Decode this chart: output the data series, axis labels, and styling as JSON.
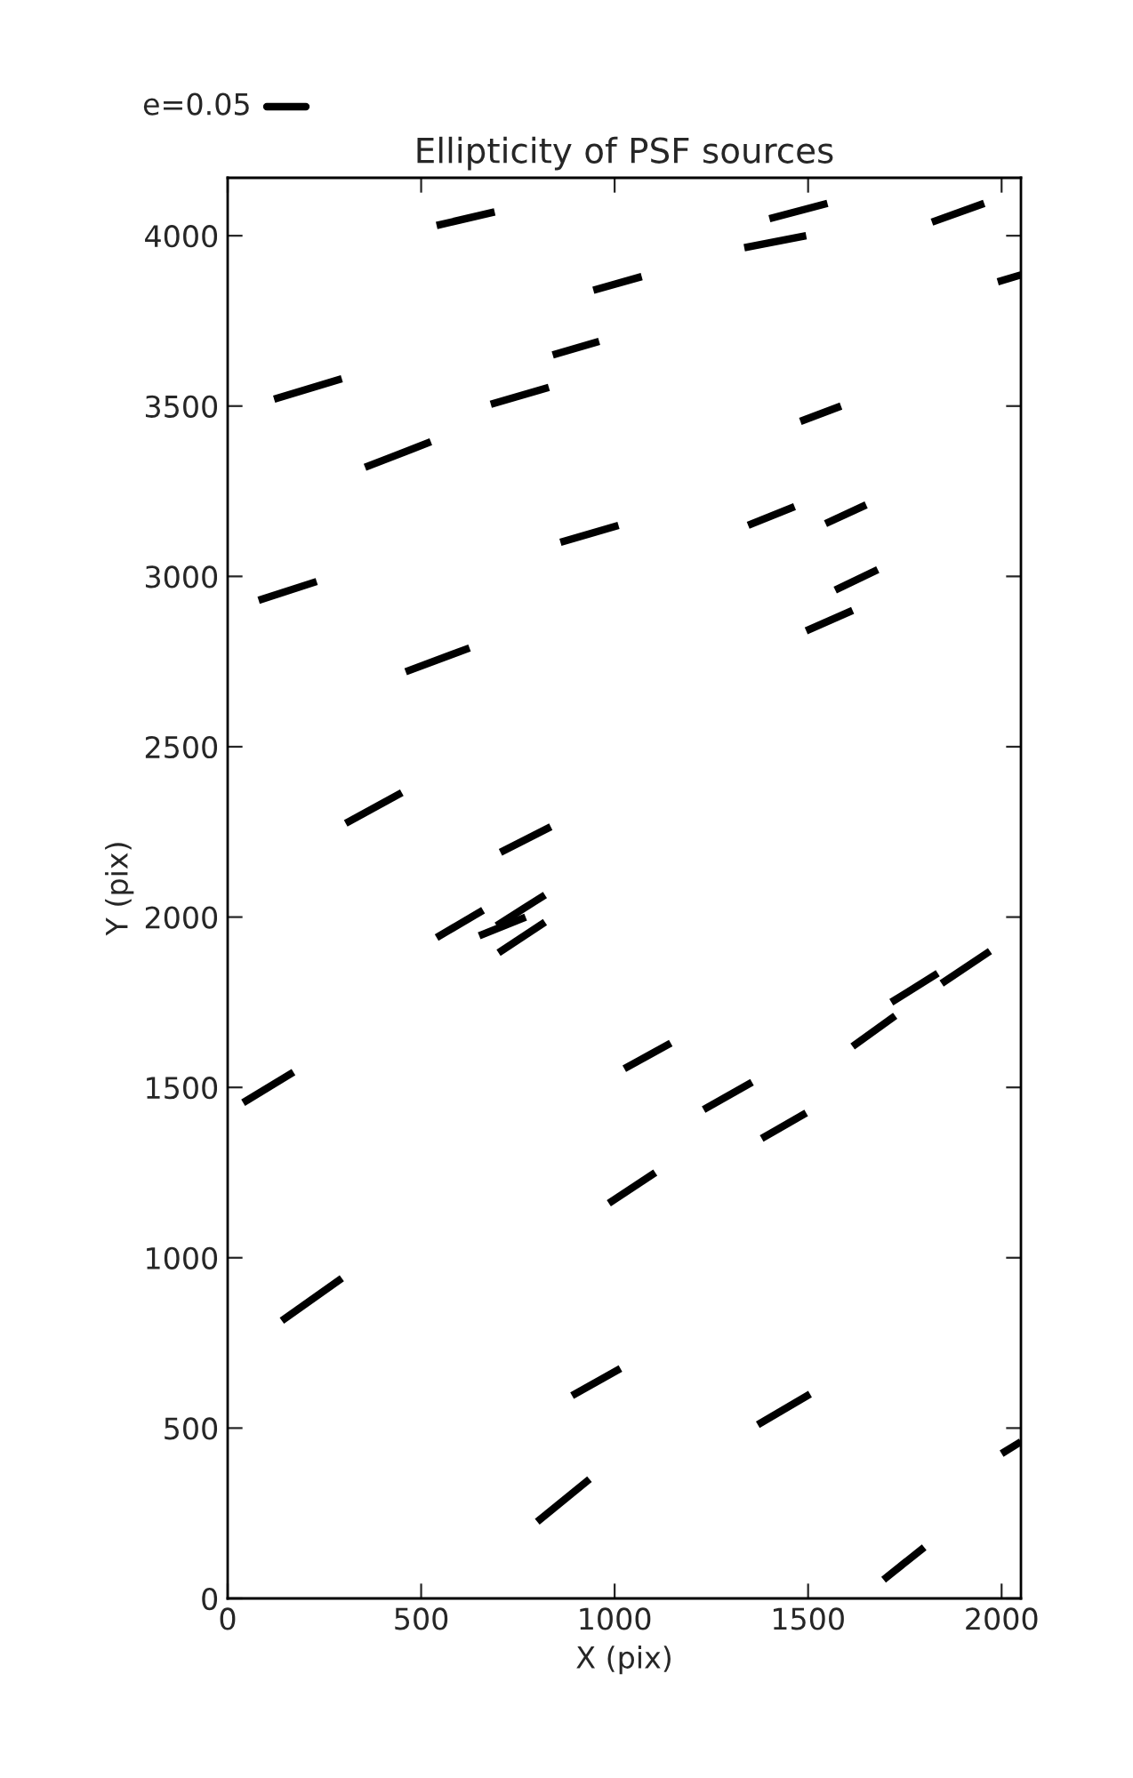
{
  "chart_data": {
    "type": "line",
    "title": "Ellipticity of PSF sources",
    "xlabel": "X (pix)",
    "ylabel": "Y (pix)",
    "annotations": [
      "e=0.05"
    ],
    "xlim": [
      0,
      2050
    ],
    "xticks": [
      0,
      500,
      1000,
      1500,
      2000
    ],
    "ylim": [
      0,
      4170
    ],
    "yticks": [
      0,
      500,
      1000,
      1500,
      2000,
      2500,
      3000,
      3500,
      4000
    ],
    "grid": false,
    "marker": "none",
    "line_style": "solid",
    "series": [
      {
        "color": "#000000",
        "x": [
          540,
          690
        ],
        "values": [
          4030,
          4070
        ]
      },
      {
        "color": "#000000",
        "x": [
          1400,
          1550
        ],
        "values": [
          4050,
          4095
        ]
      },
      {
        "color": "#000000",
        "x": [
          1820,
          1955
        ],
        "values": [
          4040,
          4095
        ]
      },
      {
        "color": "#000000",
        "x": [
          1335,
          1495
        ],
        "values": [
          3965,
          4000
        ]
      },
      {
        "color": "#000000",
        "x": [
          1990,
          2050
        ],
        "values": [
          3865,
          3885
        ]
      },
      {
        "color": "#000000",
        "x": [
          945,
          1070
        ],
        "values": [
          3840,
          3880
        ]
      },
      {
        "color": "#000000",
        "x": [
          120,
          295
        ],
        "values": [
          3520,
          3580
        ]
      },
      {
        "color": "#000000",
        "x": [
          840,
          960
        ],
        "values": [
          3650,
          3690
        ]
      },
      {
        "color": "#000000",
        "x": [
          680,
          830
        ],
        "values": [
          3505,
          3555
        ]
      },
      {
        "color": "#000000",
        "x": [
          355,
          525
        ],
        "values": [
          3320,
          3395
        ]
      },
      {
        "color": "#000000",
        "x": [
          1480,
          1585
        ],
        "values": [
          3455,
          3500
        ]
      },
      {
        "color": "#000000",
        "x": [
          80,
          230
        ],
        "values": [
          2930,
          2985
        ]
      },
      {
        "color": "#000000",
        "x": [
          860,
          1010
        ],
        "values": [
          3100,
          3150
        ]
      },
      {
        "color": "#000000",
        "x": [
          1345,
          1465
        ],
        "values": [
          3150,
          3205
        ]
      },
      {
        "color": "#000000",
        "x": [
          1545,
          1650
        ],
        "values": [
          3155,
          3210
        ]
      },
      {
        "color": "#000000",
        "x": [
          1570,
          1680
        ],
        "values": [
          2960,
          3020
        ]
      },
      {
        "color": "#000000",
        "x": [
          1495,
          1615
        ],
        "values": [
          2840,
          2900
        ]
      },
      {
        "color": "#000000",
        "x": [
          460,
          625
        ],
        "values": [
          2720,
          2790
        ]
      },
      {
        "color": "#000000",
        "x": [
          305,
          450
        ],
        "values": [
          2275,
          2365
        ]
      },
      {
        "color": "#000000",
        "x": [
          705,
          835
        ],
        "values": [
          2190,
          2265
        ]
      },
      {
        "color": "#000000",
        "x": [
          540,
          660
        ],
        "values": [
          1940,
          2020
        ]
      },
      {
        "color": "#000000",
        "x": [
          650,
          770
        ],
        "values": [
          1945,
          2000
        ]
      },
      {
        "color": "#000000",
        "x": [
          695,
          820
        ],
        "values": [
          1975,
          2065
        ]
      },
      {
        "color": "#000000",
        "x": [
          700,
          820
        ],
        "values": [
          1895,
          1985
        ]
      },
      {
        "color": "#000000",
        "x": [
          40,
          170
        ],
        "values": [
          1455,
          1545
        ]
      },
      {
        "color": "#000000",
        "x": [
          140,
          295
        ],
        "values": [
          815,
          940
        ]
      },
      {
        "color": "#000000",
        "x": [
          890,
          1015
        ],
        "values": [
          595,
          675
        ]
      },
      {
        "color": "#000000",
        "x": [
          800,
          935
        ],
        "values": [
          225,
          350
        ]
      },
      {
        "color": "#000000",
        "x": [
          1025,
          1145
        ],
        "values": [
          1555,
          1630
        ]
      },
      {
        "color": "#000000",
        "x": [
          985,
          1105
        ],
        "values": [
          1160,
          1250
        ]
      },
      {
        "color": "#000000",
        "x": [
          1230,
          1355
        ],
        "values": [
          1435,
          1515
        ]
      },
      {
        "color": "#000000",
        "x": [
          1380,
          1495
        ],
        "values": [
          1350,
          1425
        ]
      },
      {
        "color": "#000000",
        "x": [
          1370,
          1505
        ],
        "values": [
          510,
          600
        ]
      },
      {
        "color": "#000000",
        "x": [
          1615,
          1725
        ],
        "values": [
          1620,
          1710
        ]
      },
      {
        "color": "#000000",
        "x": [
          1715,
          1835
        ],
        "values": [
          1750,
          1835
        ]
      },
      {
        "color": "#000000",
        "x": [
          1845,
          1970
        ],
        "values": [
          1805,
          1900
        ]
      },
      {
        "color": "#000000",
        "x": [
          1695,
          1800
        ],
        "values": [
          55,
          150
        ]
      },
      {
        "color": "#000000",
        "x": [
          2000,
          2050
        ],
        "values": [
          425,
          460
        ]
      }
    ]
  }
}
